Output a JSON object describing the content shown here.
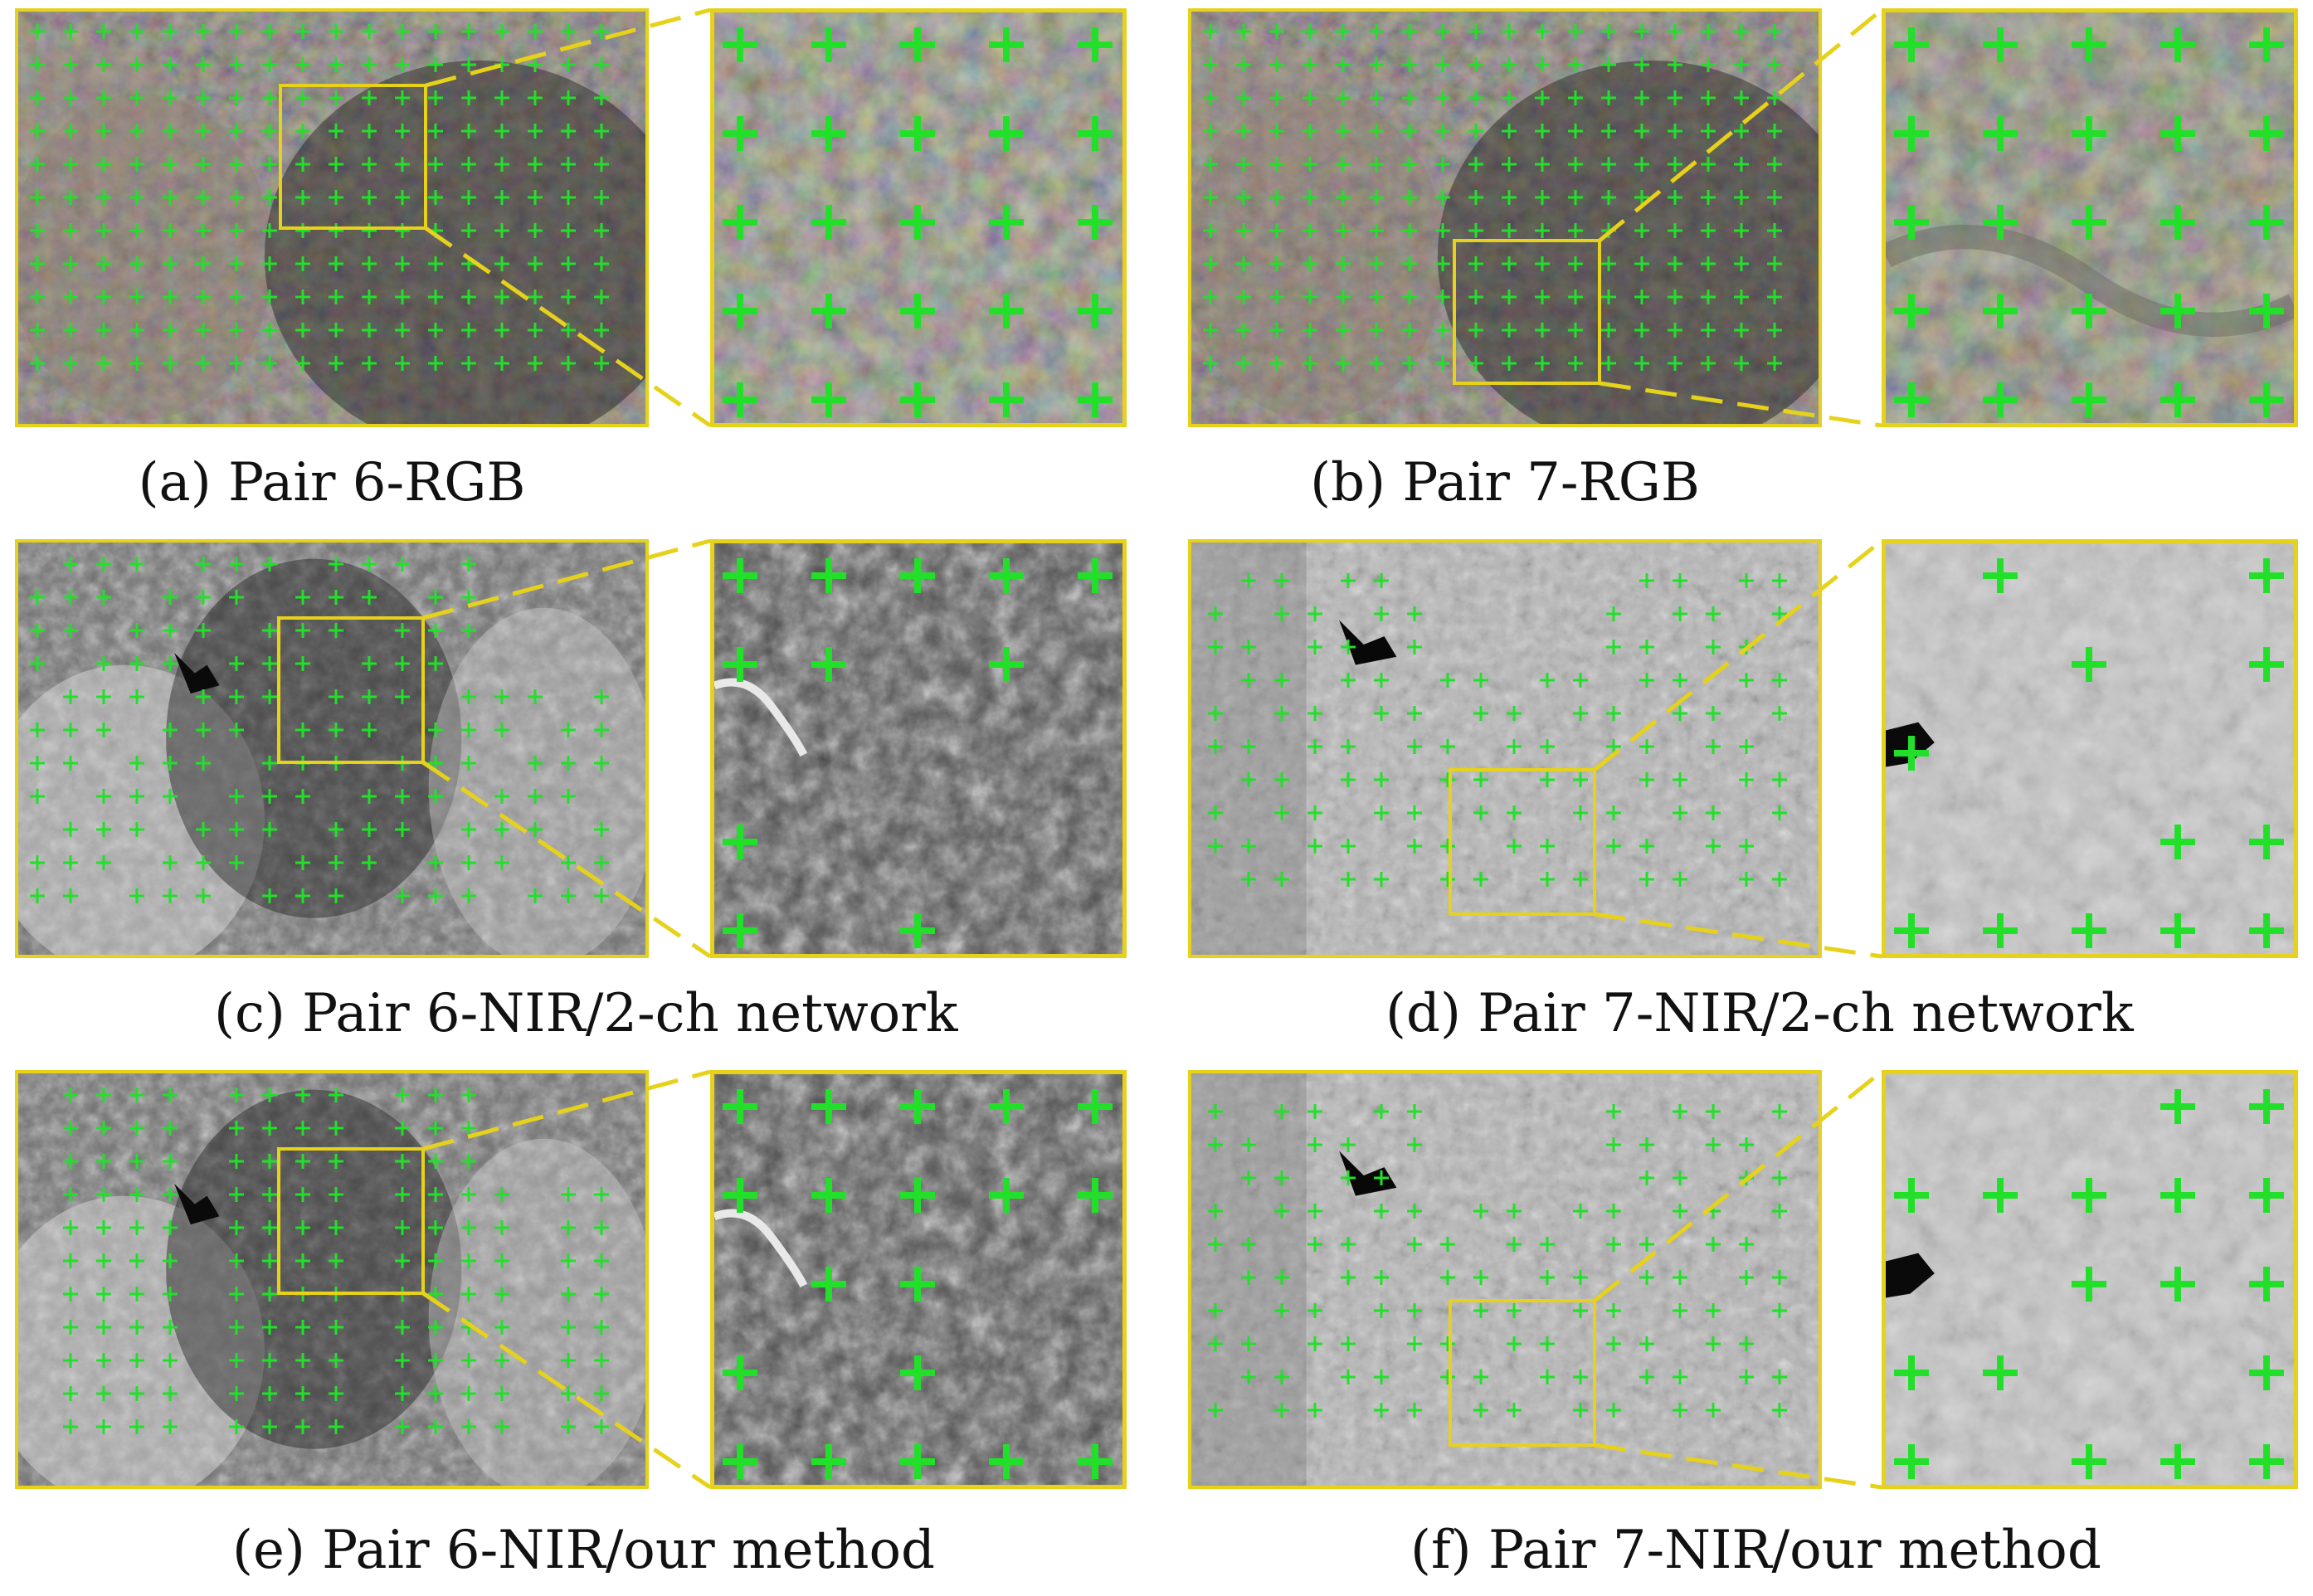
{
  "figure": {
    "panels": [
      {
        "id": "a",
        "caption": "(a) Pair 6-RGB",
        "style": "rgb"
      },
      {
        "id": "b",
        "caption": "(b) Pair 7-RGB",
        "style": "rgb"
      },
      {
        "id": "c",
        "caption": "(c) Pair 6-NIR/2-ch network",
        "style": "nir-dark"
      },
      {
        "id": "d",
        "caption": "(d) Pair 7-NIR/2-ch network",
        "style": "nir-light"
      },
      {
        "id": "e",
        "caption": "(e) Pair 6-NIR/our method",
        "style": "nir-dark"
      },
      {
        "id": "f",
        "caption": "(f) Pair 7-NIR/our method",
        "style": "nir-light"
      }
    ],
    "colors": {
      "frame": "#e6d21a",
      "connector": "#e6d21a",
      "marker": "#22e02a",
      "rgb_base": "#3a3330",
      "nir_dark_base": "#555555",
      "nir_light_base": "#bdbdbd"
    },
    "marker_icon": "green-cross-marker"
  }
}
